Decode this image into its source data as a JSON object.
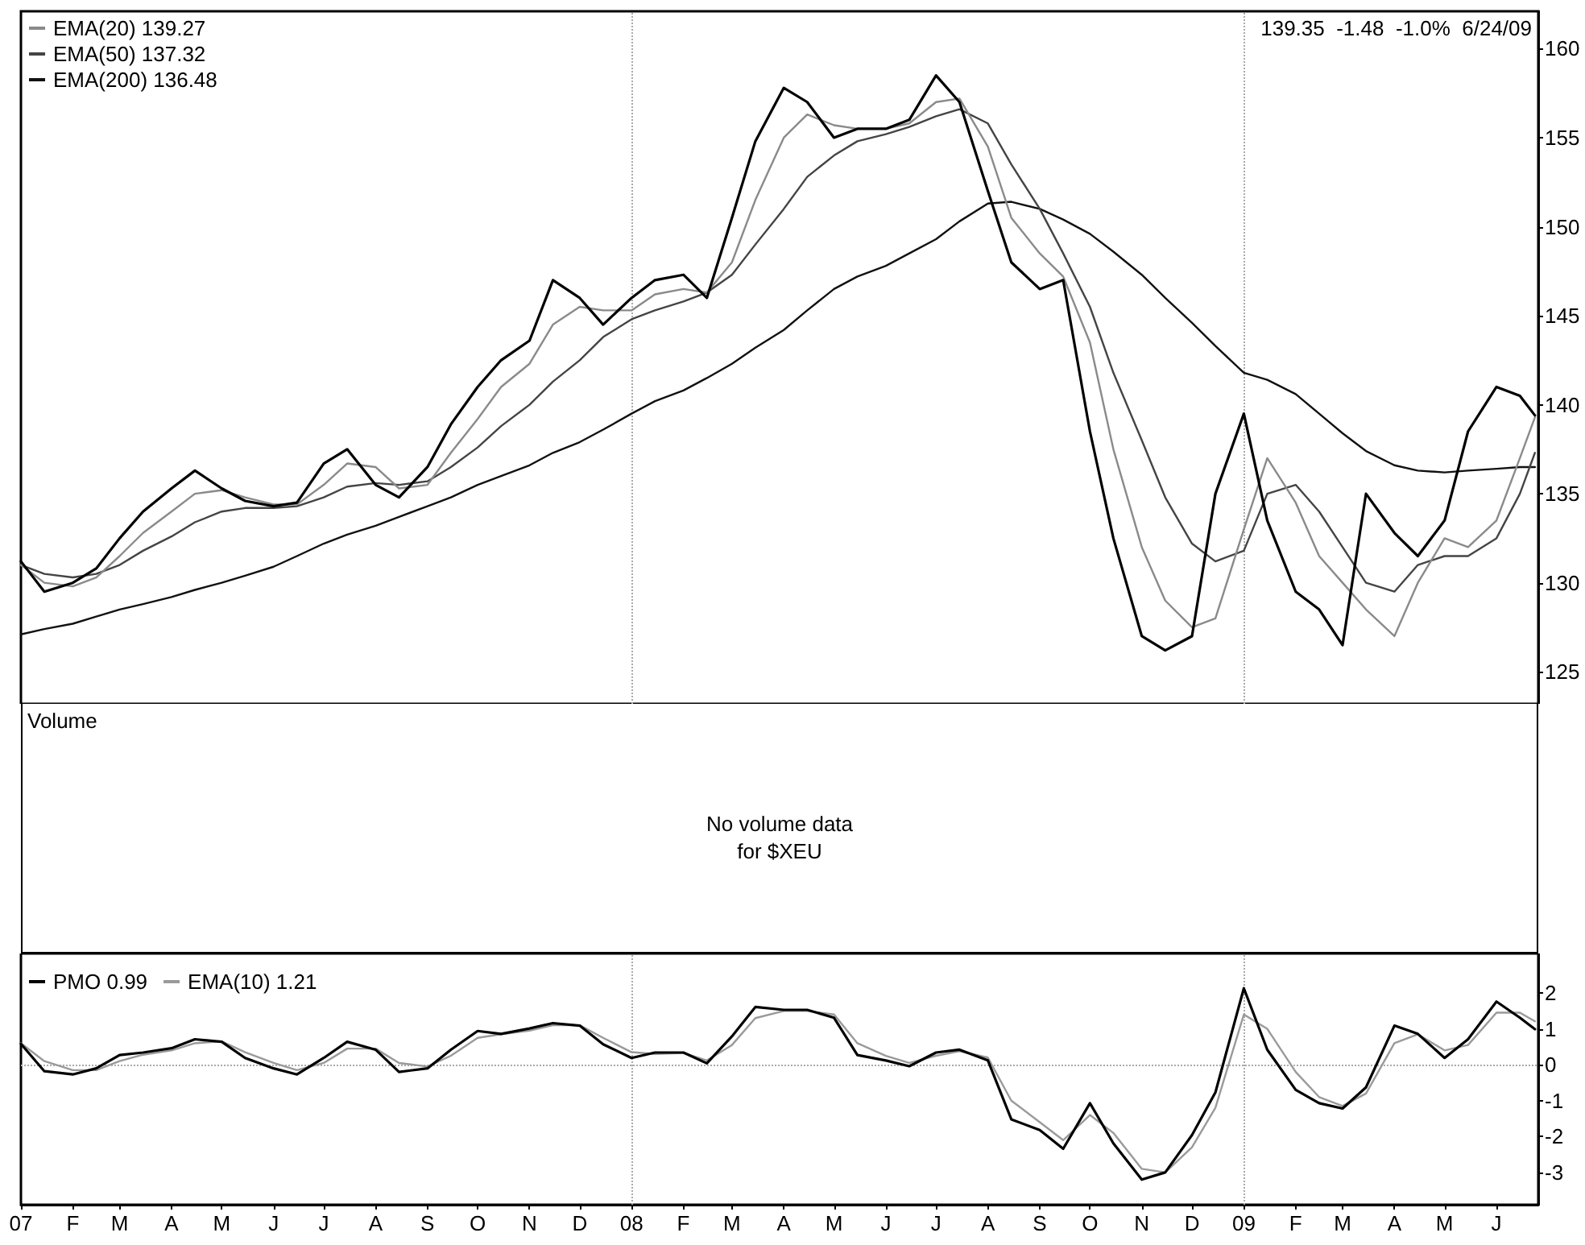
{
  "chart_data": [
    {
      "type": "line",
      "tick_labels": "y",
      "legend": "top left",
      "marker": "none",
      "x": [
        "2007-01-01",
        "2007-01-15",
        "2007-02-01",
        "2007-02-15",
        "2007-03-01",
        "2007-03-15",
        "2007-04-01",
        "2007-04-15",
        "2007-05-01",
        "2007-05-15",
        "2007-06-01",
        "2007-06-15",
        "2007-07-01",
        "2007-07-15",
        "2007-08-01",
        "2007-08-15",
        "2007-09-01",
        "2007-09-15",
        "2007-10-01",
        "2007-10-15",
        "2007-11-01",
        "2007-11-15",
        "2007-12-01",
        "2007-12-15",
        "2008-01-01",
        "2008-01-15",
        "2008-02-01",
        "2008-02-15",
        "2008-03-01",
        "2008-03-15",
        "2008-04-01",
        "2008-04-15",
        "2008-05-01",
        "2008-05-15",
        "2008-06-01",
        "2008-06-15",
        "2008-07-01",
        "2008-07-15",
        "2008-08-01",
        "2008-08-15",
        "2008-09-01",
        "2008-09-15",
        "2008-10-01",
        "2008-10-15",
        "2008-11-01",
        "2008-11-15",
        "2008-12-01",
        "2008-12-15",
        "2009-01-01",
        "2009-01-15",
        "2009-02-01",
        "2009-02-15",
        "2009-03-01",
        "2009-03-15",
        "2009-04-01",
        "2009-04-15",
        "2009-05-01",
        "2009-05-15",
        "2009-06-01",
        "2009-06-15",
        "2009-06-24"
      ],
      "series": [
        {
          "color": "#000000",
          "values": [
            131.2,
            129.5,
            130.0,
            130.8,
            132.5,
            134.0,
            135.3,
            136.3,
            135.3,
            134.6,
            134.3,
            134.5,
            136.7,
            137.5,
            135.5,
            134.8,
            136.5,
            138.9,
            141.0,
            142.5,
            143.6,
            147.0,
            146.0,
            144.5,
            146.0,
            147.0,
            147.3,
            146.0,
            150.5,
            154.8,
            157.8,
            157.0,
            155.0,
            155.5,
            155.5,
            156.0,
            158.5,
            157.0,
            152.0,
            148.0,
            146.5,
            147.0,
            138.5,
            132.5,
            127.0,
            126.2,
            127.0,
            135.0,
            139.5,
            133.5,
            129.5,
            128.5,
            126.5,
            135.0,
            132.8,
            131.5,
            133.5,
            138.5,
            141.0,
            140.5,
            139.4
          ]
        },
        {
          "name": "EMA(20) 139.27",
          "color": "#8a8a8a",
          "values": [
            131.0,
            130.0,
            129.8,
            130.3,
            131.5,
            132.8,
            134.0,
            135.0,
            135.2,
            134.8,
            134.4,
            134.4,
            135.5,
            136.7,
            136.5,
            135.3,
            135.5,
            137.3,
            139.2,
            141.0,
            142.3,
            144.5,
            145.5,
            145.3,
            145.3,
            146.2,
            146.5,
            146.3,
            148.0,
            151.5,
            155.0,
            156.3,
            155.7,
            155.5,
            155.5,
            155.8,
            157.0,
            157.2,
            154.5,
            150.5,
            148.5,
            147.2,
            143.5,
            137.5,
            132.0,
            129.0,
            127.5,
            128.0,
            133.0,
            137.0,
            134.5,
            131.5,
            130.0,
            128.5,
            127.0,
            130.0,
            132.5,
            132.0,
            133.5,
            137.0,
            139.3
          ]
        },
        {
          "name": "EMA(50) 137.32",
          "color": "#444444",
          "values": [
            131.0,
            130.5,
            130.3,
            130.5,
            131.0,
            131.8,
            132.6,
            133.4,
            134.0,
            134.2,
            134.2,
            134.3,
            134.8,
            135.4,
            135.6,
            135.5,
            135.7,
            136.5,
            137.6,
            138.8,
            140.0,
            141.3,
            142.5,
            143.8,
            144.8,
            145.3,
            145.8,
            146.3,
            147.3,
            149.0,
            151.0,
            152.8,
            154.0,
            154.8,
            155.2,
            155.6,
            156.2,
            156.6,
            155.8,
            153.5,
            151.0,
            148.5,
            145.5,
            141.8,
            138.0,
            134.8,
            132.2,
            131.2,
            131.8,
            135.0,
            135.5,
            134.0,
            132.0,
            130.0,
            129.5,
            131.0,
            131.5,
            131.5,
            132.5,
            135.0,
            137.3
          ]
        },
        {
          "name": "EMA(200) 136.48",
          "color": "#111111",
          "values": [
            127.1,
            127.4,
            127.7,
            128.1,
            128.5,
            128.8,
            129.2,
            129.6,
            130.0,
            130.4,
            130.9,
            131.5,
            132.2,
            132.7,
            133.2,
            133.7,
            134.3,
            134.8,
            135.5,
            136.0,
            136.6,
            137.3,
            137.9,
            138.6,
            139.5,
            140.2,
            140.8,
            141.5,
            142.3,
            143.2,
            144.2,
            145.3,
            146.5,
            147.2,
            147.8,
            148.5,
            149.3,
            150.3,
            151.3,
            151.4,
            151.0,
            150.4,
            149.6,
            148.6,
            147.3,
            146.0,
            144.6,
            143.3,
            141.8,
            141.4,
            140.6,
            139.5,
            138.4,
            137.4,
            136.6,
            136.3,
            136.2,
            136.3,
            136.4,
            136.5,
            136.5
          ]
        }
      ],
      "xlim": [
        "2007-01-01",
        "2009-06-26"
      ],
      "ylim": [
        123.2,
        162.1
      ],
      "yticks": [
        125,
        130,
        135,
        140,
        145,
        150,
        155,
        160
      ],
      "ref_lines": [
        {
          "axis": "x",
          "value": "2008-01-01",
          "color": "#aaaaaa",
          "line_style": "dotted"
        },
        {
          "axis": "x",
          "value": "2009-01-01",
          "color": "#aaaaaa",
          "line_style": "dotted"
        }
      ],
      "annotations": [
        "139.35  -1.48  -1.0%  6/24/09"
      ]
    },
    {
      "type": "other",
      "title": "Volume",
      "annotations": [
        "No volume data\nfor $XEU"
      ]
    },
    {
      "type": "line",
      "legend": "top left",
      "marker": "none",
      "x": [
        "2007-01-01",
        "2007-01-15",
        "2007-02-01",
        "2007-02-15",
        "2007-03-01",
        "2007-03-15",
        "2007-04-01",
        "2007-04-15",
        "2007-05-01",
        "2007-05-15",
        "2007-06-01",
        "2007-06-15",
        "2007-07-01",
        "2007-07-15",
        "2007-08-01",
        "2007-08-15",
        "2007-09-01",
        "2007-09-15",
        "2007-10-01",
        "2007-10-15",
        "2007-11-01",
        "2007-11-15",
        "2007-12-01",
        "2007-12-15",
        "2008-01-01",
        "2008-01-15",
        "2008-02-01",
        "2008-02-15",
        "2008-03-01",
        "2008-03-15",
        "2008-04-01",
        "2008-04-15",
        "2008-05-01",
        "2008-05-15",
        "2008-06-01",
        "2008-06-15",
        "2008-07-01",
        "2008-07-15",
        "2008-08-01",
        "2008-08-15",
        "2008-09-01",
        "2008-09-15",
        "2008-10-01",
        "2008-10-15",
        "2008-11-01",
        "2008-11-15",
        "2008-12-01",
        "2008-12-15",
        "2009-01-01",
        "2009-01-15",
        "2009-02-01",
        "2009-02-15",
        "2009-03-01",
        "2009-03-15",
        "2009-04-01",
        "2009-04-15",
        "2009-05-01",
        "2009-05-15",
        "2009-06-01",
        "2009-06-15",
        "2009-06-24"
      ],
      "series": [
        {
          "name": "PMO 0.99",
          "color": "#000000",
          "values": [
            0.58,
            -0.18,
            -0.27,
            -0.1,
            0.27,
            0.34,
            0.46,
            0.71,
            0.64,
            0.19,
            -0.1,
            -0.27,
            0.19,
            0.64,
            0.42,
            -0.2,
            -0.1,
            0.42,
            0.94,
            0.86,
            1.01,
            1.16,
            1.09,
            0.57,
            0.19,
            0.34,
            0.34,
            0.04,
            0.79,
            1.61,
            1.53,
            1.53,
            1.31,
            0.27,
            0.12,
            -0.04,
            0.34,
            0.42,
            0.12,
            -1.52,
            -1.82,
            -2.34,
            -1.07,
            -2.19,
            -3.2,
            -3.0,
            -1.96,
            -0.77,
            2.13,
            0.42,
            -0.7,
            -1.07,
            -1.22,
            -0.63,
            1.09,
            0.86,
            0.19,
            0.71,
            1.76,
            1.31,
            0.99
          ]
        },
        {
          "name": "EMA(10) 1.21",
          "color": "#9a9a9a",
          "values": [
            0.6,
            0.1,
            -0.15,
            -0.15,
            0.1,
            0.28,
            0.4,
            0.6,
            0.65,
            0.35,
            0.05,
            -0.15,
            0.05,
            0.45,
            0.45,
            0.05,
            -0.05,
            0.25,
            0.75,
            0.85,
            0.95,
            1.1,
            1.1,
            0.75,
            0.35,
            0.3,
            0.33,
            0.12,
            0.55,
            1.3,
            1.5,
            1.5,
            1.4,
            0.6,
            0.25,
            0.05,
            0.25,
            0.38,
            0.2,
            -1.0,
            -1.6,
            -2.1,
            -1.4,
            -1.9,
            -2.9,
            -3.0,
            -2.3,
            -1.2,
            1.4,
            1.0,
            -0.2,
            -0.9,
            -1.15,
            -0.8,
            0.6,
            0.85,
            0.4,
            0.55,
            1.45,
            1.45,
            1.21
          ]
        }
      ],
      "xlim": [
        "2007-01-01",
        "2009-06-26"
      ],
      "xticks": [
        {
          "value": "2007-01-01",
          "label": "07"
        },
        {
          "value": "2007-02-01",
          "label": "F"
        },
        {
          "value": "2007-03-01",
          "label": "M"
        },
        {
          "value": "2007-04-01",
          "label": "A"
        },
        {
          "value": "2007-05-01",
          "label": "M"
        },
        {
          "value": "2007-06-01",
          "label": "J"
        },
        {
          "value": "2007-07-01",
          "label": "J"
        },
        {
          "value": "2007-08-01",
          "label": "A"
        },
        {
          "value": "2007-09-01",
          "label": "S"
        },
        {
          "value": "2007-10-01",
          "label": "O"
        },
        {
          "value": "2007-11-01",
          "label": "N"
        },
        {
          "value": "2007-12-01",
          "label": "D"
        },
        {
          "value": "2008-01-01",
          "label": "08"
        },
        {
          "value": "2008-02-01",
          "label": "F"
        },
        {
          "value": "2008-03-01",
          "label": "M"
        },
        {
          "value": "2008-04-01",
          "label": "A"
        },
        {
          "value": "2008-05-01",
          "label": "M"
        },
        {
          "value": "2008-06-01",
          "label": "J"
        },
        {
          "value": "2008-07-01",
          "label": "J"
        },
        {
          "value": "2008-08-01",
          "label": "A"
        },
        {
          "value": "2008-09-01",
          "label": "S"
        },
        {
          "value": "2008-10-01",
          "label": "O"
        },
        {
          "value": "2008-11-01",
          "label": "N"
        },
        {
          "value": "2008-12-01",
          "label": "D"
        },
        {
          "value": "2009-01-01",
          "label": "09"
        },
        {
          "value": "2009-02-01",
          "label": "F"
        },
        {
          "value": "2009-03-01",
          "label": "M"
        },
        {
          "value": "2009-04-01",
          "label": "A"
        },
        {
          "value": "2009-05-01",
          "label": "M"
        },
        {
          "value": "2009-06-01",
          "label": "J"
        }
      ],
      "ylim": [
        -3.9,
        3.1
      ],
      "yticks": [
        -3,
        -2,
        -1,
        0,
        1,
        2
      ],
      "ref_lines": [
        {
          "axis": "y",
          "value": 0,
          "color": "#aaaaaa",
          "line_style": "dotted"
        },
        {
          "axis": "x",
          "value": "2008-01-01",
          "color": "#aaaaaa",
          "line_style": "dotted"
        },
        {
          "axis": "x",
          "value": "2009-01-01",
          "color": "#aaaaaa",
          "line_style": "dotted"
        }
      ]
    }
  ]
}
